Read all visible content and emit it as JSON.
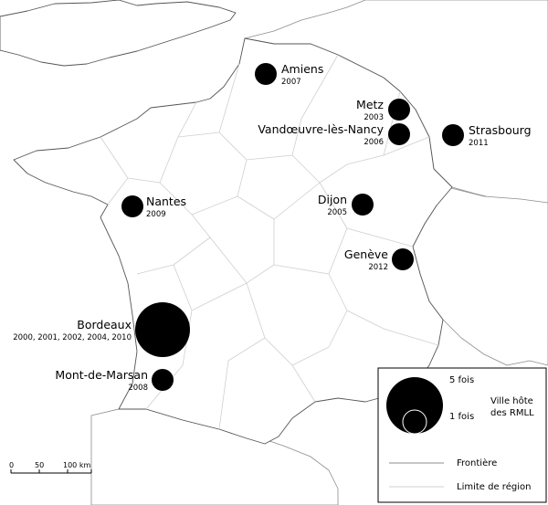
{
  "cities": [
    {
      "name": "Amiens",
      "years": "2007",
      "count": 1
    },
    {
      "name": "Metz",
      "years": "2003",
      "count": 1
    },
    {
      "name": "Vandœuvre-lès-Nancy",
      "years": "2006",
      "count": 1
    },
    {
      "name": "Strasbourg",
      "years": "2011",
      "count": 1
    },
    {
      "name": "Nantes",
      "years": "2009",
      "count": 1
    },
    {
      "name": "Dijon",
      "years": "2005",
      "count": 1
    },
    {
      "name": "Genève",
      "years": "2012",
      "count": 1
    },
    {
      "name": "Bordeaux",
      "years": "2000, 2001, 2002, 2004, 2010",
      "count": 5
    },
    {
      "name": "Mont-de-Marsan",
      "years": "2008",
      "count": 1
    }
  ],
  "legend": {
    "size_max_label": "5 fois",
    "size_min_label": "1 fois",
    "host_line1": "Ville hôte",
    "host_line2": "des RMLL",
    "border_label": "Frontière",
    "region_label": "Limite de région"
  },
  "scale": {
    "tick0": "0",
    "tick1": "50",
    "tick2": "100 km"
  },
  "colors": {
    "dot": "#000000",
    "border": "#8c8c8c",
    "region": "#cfcfcf",
    "coast": "#555555"
  }
}
